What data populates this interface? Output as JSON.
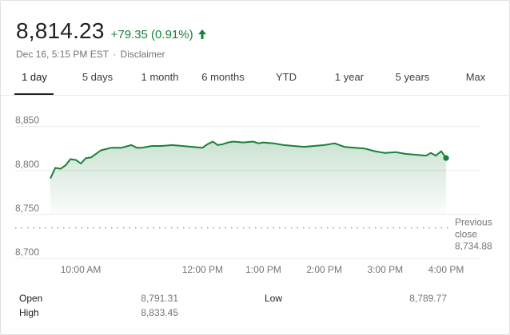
{
  "quote": {
    "price": "8,814.23",
    "change": "+79.35 (0.91%)",
    "timestamp": "Dec 16, 5:15 PM EST",
    "separator": "·",
    "disclaimer": "Disclaimer",
    "up_color": "#188038",
    "arrow_icon": "arrow-up-icon"
  },
  "tabs": [
    {
      "label": "1 day",
      "active": true
    },
    {
      "label": "5 days",
      "active": false
    },
    {
      "label": "1 month",
      "active": false
    },
    {
      "label": "6 months",
      "active": false
    },
    {
      "label": "YTD",
      "active": false
    },
    {
      "label": "1 year",
      "active": false
    },
    {
      "label": "5 years",
      "active": false
    },
    {
      "label": "Max",
      "active": false
    }
  ],
  "chart_data": {
    "type": "area",
    "y_ticks": [
      "8,850",
      "8,800",
      "8,750",
      "8,700"
    ],
    "y_tick_values": [
      8850,
      8800,
      8750,
      8700
    ],
    "x_ticks": [
      "10:00 AM",
      "12:00 PM",
      "1:00 PM",
      "2:00 PM",
      "3:00 PM",
      "4:00 PM"
    ],
    "x_tick_hours": [
      10,
      12,
      13,
      14,
      15,
      16
    ],
    "ylim": [
      8700,
      8867
    ],
    "xlim_hours": [
      9.5,
      16.25
    ],
    "series": [
      {
        "x_hours": [
          9.5,
          9.58,
          9.67,
          9.75,
          9.83,
          9.92,
          10.0,
          10.08,
          10.17,
          10.25,
          10.33,
          10.5,
          10.67,
          10.83,
          10.92,
          11.0,
          11.17,
          11.33,
          11.5,
          11.67,
          11.83,
          12.0,
          12.08,
          12.17,
          12.25,
          12.33,
          12.42,
          12.5,
          12.67,
          12.83,
          12.92,
          13.0,
          13.17,
          13.33,
          13.5,
          13.67,
          13.83,
          14.0,
          14.17,
          14.33,
          14.5,
          14.67,
          14.83,
          15.0,
          15.17,
          15.33,
          15.5,
          15.67,
          15.75,
          15.83,
          15.92,
          16.0
        ],
        "values": [
          8791,
          8803,
          8802,
          8806,
          8813,
          8812,
          8808,
          8814,
          8815,
          8819,
          8823,
          8826,
          8826,
          8829,
          8826,
          8826,
          8828,
          8828,
          8829,
          8828,
          8827,
          8826,
          8830,
          8833,
          8829,
          8830,
          8832,
          8833,
          8832,
          8833,
          8831,
          8832,
          8831,
          8829,
          8828,
          8827,
          8828,
          8829,
          8831,
          8827,
          8826,
          8825,
          8822,
          8820,
          8821,
          8819,
          8818,
          8817,
          8820,
          8817,
          8822,
          8814.23
        ],
        "color": "#188038"
      }
    ],
    "previous_close": 8734.88,
    "previous_close_label": [
      "Previous",
      "close"
    ],
    "previous_close_value": "8,734.88",
    "grid": true
  },
  "stats": {
    "open_label": "Open",
    "open_value": "8,791.31",
    "high_label": "High",
    "high_value": "8,833.45",
    "low_label": "Low",
    "low_value": "8,789.77"
  }
}
